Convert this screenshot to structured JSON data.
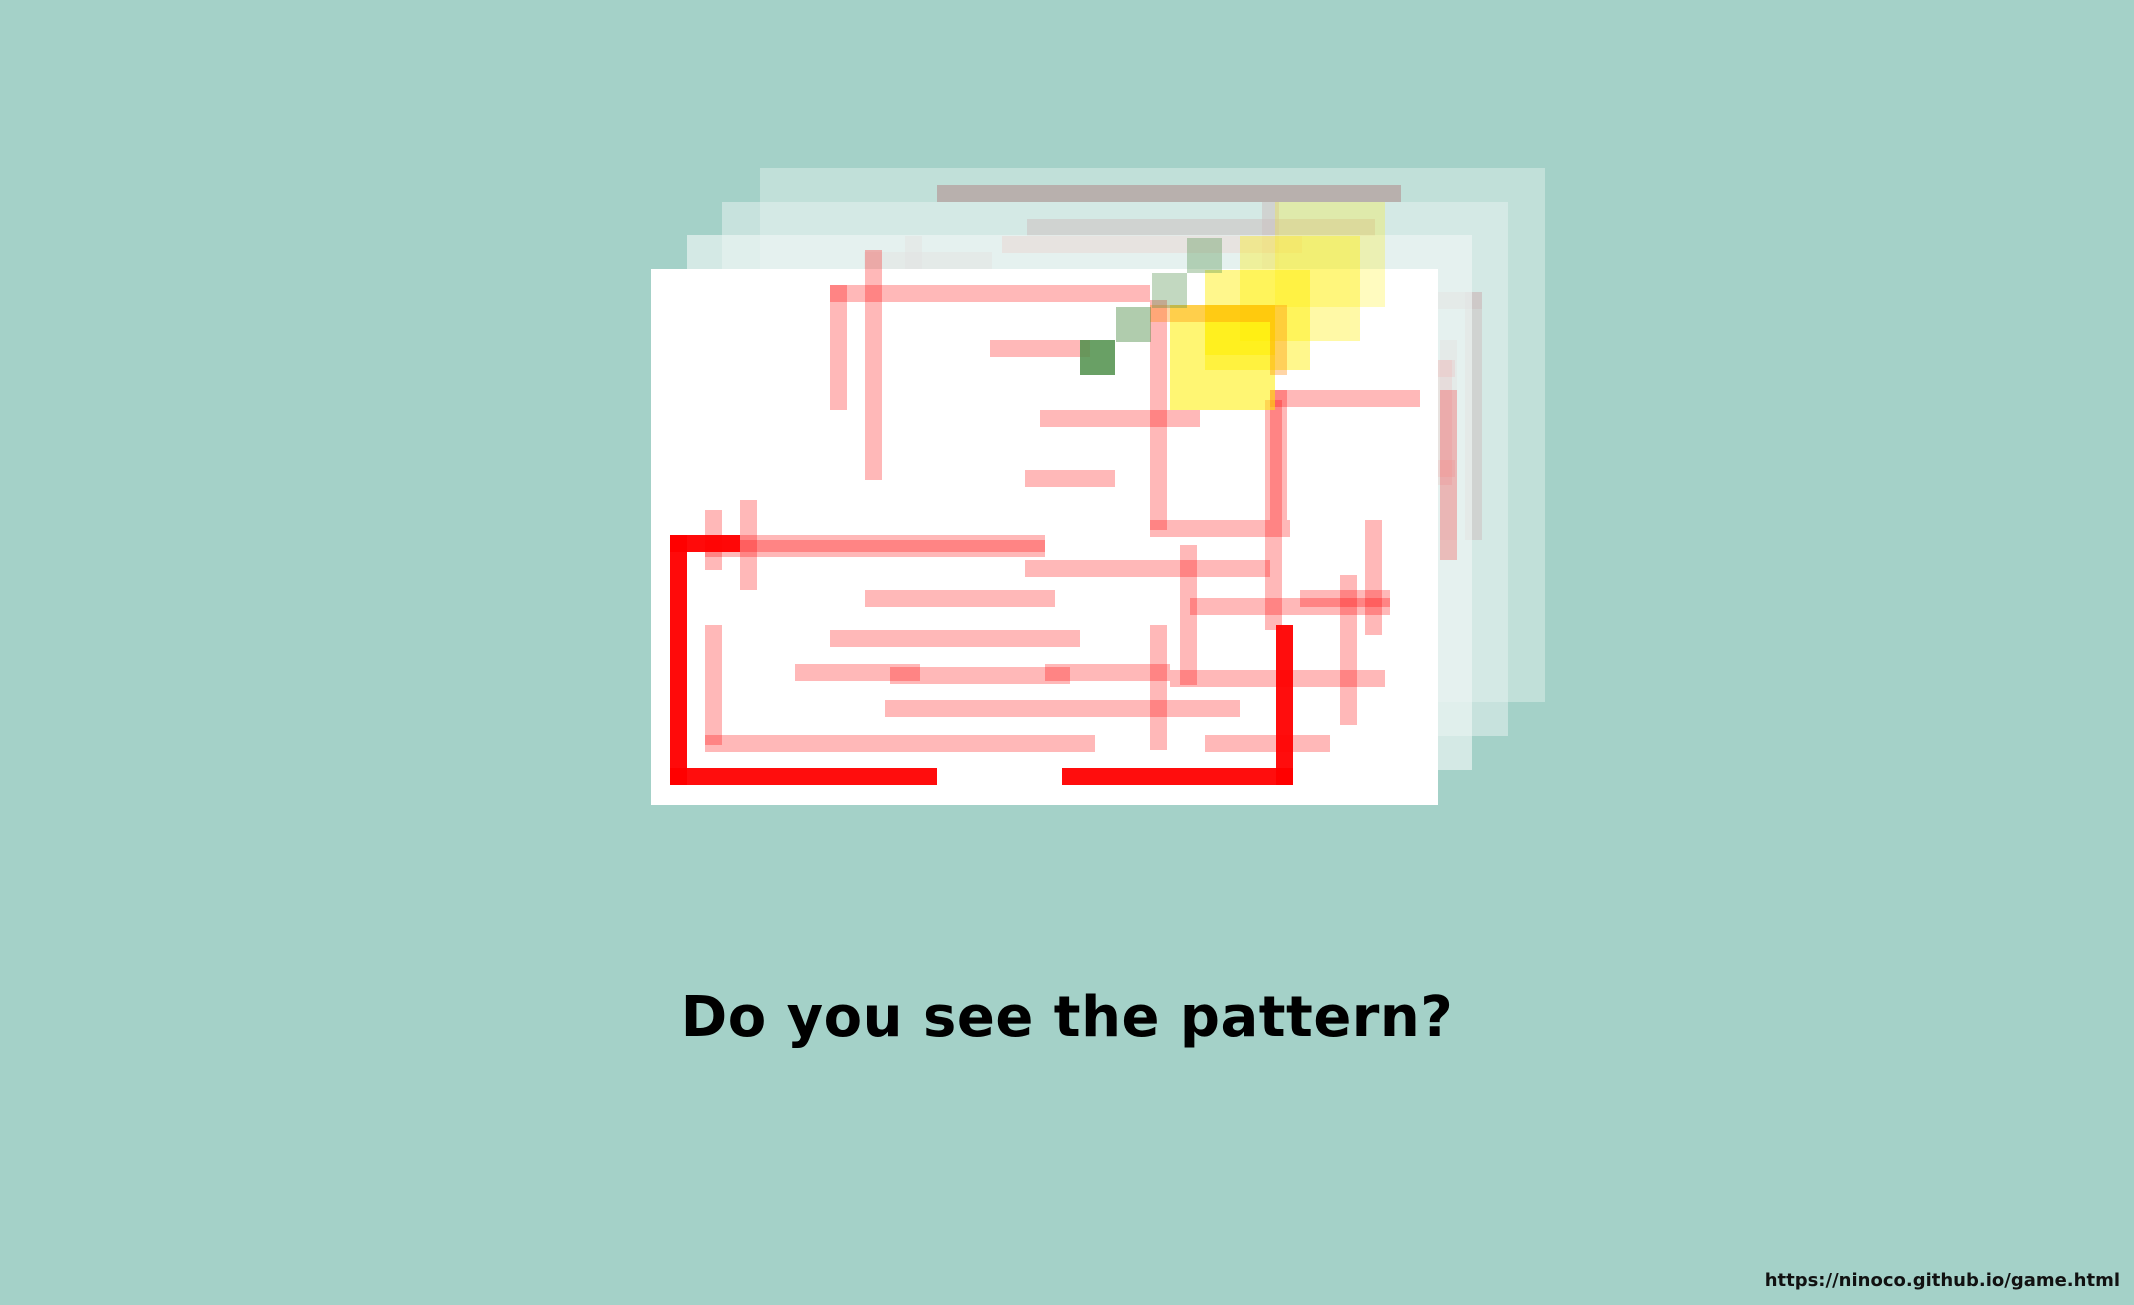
{
  "slide": {
    "caption": "Do you see the pattern?",
    "source_url": "https://ninoco.github.io/game.html"
  },
  "colors": {
    "background": "#a4d1c8",
    "wall": "#ff0000",
    "back_wall": "#b08888",
    "highlight": "#ffee00",
    "marker": "#4f8f4a"
  },
  "figure": {
    "description_icon": "stacked-maze-frames",
    "frame_count": 4,
    "grid": {
      "cols": 29,
      "rows": 20
    }
  }
}
